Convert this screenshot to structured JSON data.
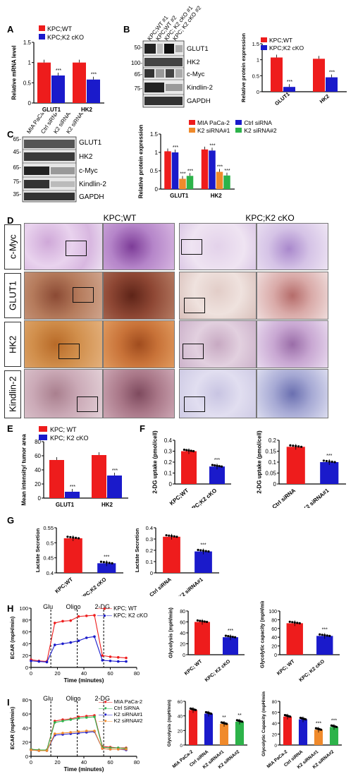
{
  "panels": {
    "A": "A",
    "B": "B",
    "C": "C",
    "D": "D",
    "E": "E",
    "F": "F",
    "G": "G",
    "H": "H",
    "I": "I"
  },
  "colors": {
    "red": "#ee1c1c",
    "blue": "#1a1acb",
    "green": "#2db34a",
    "orange": "#f08a2b",
    "wt": "#ee1c1c",
    "ko": "#1a1acb"
  },
  "panelA": {
    "legend": [
      "KPC;WT",
      "KPC;K2 cKO"
    ],
    "sig": [
      "***",
      "***"
    ]
  },
  "panelB": {
    "lanes": [
      "KPC;WT #1",
      "KPC;WT #2",
      "KPC; K2 cKO #1",
      "KPC; K2 cKO #2"
    ],
    "mw": [
      "50-",
      "100-",
      "65-",
      "75-"
    ],
    "proteins": [
      "GLUT1",
      "HK2",
      "c-Myc",
      "Kindlin-2",
      "GAPDH"
    ],
    "legend": [
      "KPC;WT",
      "KPC;K2 cKO"
    ]
  },
  "panelC": {
    "lanes": [
      "MIA PaCa-2",
      "Ctrl siRNA",
      "K2 siRNA#1",
      "K2 siRNA#2"
    ],
    "mw": [
      "65-",
      "45-",
      "65-",
      "75-",
      "35-"
    ],
    "proteins": [
      "GLUT1",
      "HK2",
      "c-Myc",
      "Kindlin-2",
      "GAPDH"
    ],
    "legend": [
      "MIA PaCa-2",
      "K2 siRNA#1",
      "Ctrl siRNA",
      "K2 siRNA#2"
    ]
  },
  "panelD": {
    "col_titles": [
      "KPC;WT",
      "KPC;K2 cKO"
    ],
    "rows": [
      "c-Myc",
      "GLUT1",
      "HK2",
      "Kindlin-2"
    ]
  },
  "panelE": {
    "legend": [
      "KPC; WT",
      "KPC; K2 cKO"
    ]
  },
  "panelF": {},
  "panelG": {},
  "panelH": {
    "legend": [
      "KPC; WT",
      "KPC; K2 cKO"
    ],
    "annot": [
      "Glu",
      "Oligo",
      "2-DG"
    ]
  },
  "panelI": {
    "legend": [
      "MIA PaCa-2",
      "Ctrl SiRNA",
      "K2 siRNA#1",
      "K2 siRNA#2"
    ],
    "annot": [
      "Glu",
      "Oligo",
      "2-DG"
    ]
  },
  "chart_data": [
    {
      "id": "A",
      "type": "bar",
      "ylabel": "Relative mRNA level",
      "categories": [
        "GLUT1",
        "HK2"
      ],
      "ylim": [
        0,
        1.5
      ],
      "yticks": [
        0.0,
        0.5,
        1.0,
        1.5
      ],
      "series": [
        {
          "name": "KPC;WT",
          "values": [
            1.0,
            1.0
          ]
        },
        {
          "name": "KPC;K2 cKO",
          "values": [
            0.68,
            0.58
          ]
        }
      ]
    },
    {
      "id": "B",
      "type": "bar",
      "ylabel": "Relative protein expression",
      "categories": [
        "GLUT1",
        "HK2"
      ],
      "ylim": [
        0,
        1.5
      ],
      "yticks": [
        0.0,
        0.5,
        1.0,
        1.5
      ],
      "series": [
        {
          "name": "KPC;WT",
          "values": [
            1.07,
            1.03
          ]
        },
        {
          "name": "KPC;K2 cKO",
          "values": [
            0.15,
            0.45
          ]
        }
      ],
      "sig": [
        "***",
        "***"
      ]
    },
    {
      "id": "C",
      "type": "bar",
      "ylabel": "Relative protein expression",
      "categories": [
        "GLUT1",
        "HK2"
      ],
      "ylim": [
        0,
        1.5
      ],
      "yticks": [
        0.0,
        0.5,
        1.0,
        1.5
      ],
      "series": [
        {
          "name": "MIA PaCa-2",
          "values": [
            1.03,
            1.08
          ]
        },
        {
          "name": "Ctrl siRNA",
          "values": [
            1.0,
            1.05
          ]
        },
        {
          "name": "K2 siRNA#1",
          "values": [
            0.28,
            0.47
          ]
        },
        {
          "name": "K2 siRNA#2",
          "values": [
            0.36,
            0.37
          ]
        }
      ],
      "sig": [
        "***",
        "***",
        "***",
        "***"
      ]
    },
    {
      "id": "E",
      "type": "bar",
      "ylabel": "Mean intensity/ tumor area",
      "categories": [
        "GLUT1",
        "HK2"
      ],
      "ylim": [
        0,
        80
      ],
      "yticks": [
        0,
        20,
        40,
        60,
        80
      ],
      "series": [
        {
          "name": "KPC; WT",
          "values": [
            54,
            61
          ]
        },
        {
          "name": "KPC; K2 cKO",
          "values": [
            9,
            32
          ]
        }
      ],
      "sig": [
        "***",
        "***"
      ]
    },
    {
      "id": "F1",
      "type": "bar",
      "ylabel": "2-DG uptake (pmol/cell)",
      "categories": [
        "KPC;WT",
        "KPC;K2 cKO"
      ],
      "ylim": [
        0,
        0.4
      ],
      "yticks": [
        0.0,
        0.1,
        0.2,
        0.3,
        0.4
      ],
      "values": [
        0.3,
        0.16
      ],
      "sig": "***"
    },
    {
      "id": "F2",
      "type": "bar",
      "ylabel": "2-DG uptake (pmol/cell)",
      "categories": [
        "Ctrl siRNA",
        "K2 siRNA#1"
      ],
      "ylim": [
        0,
        0.2
      ],
      "yticks": [
        0.0,
        0.05,
        0.1,
        0.15,
        0.2
      ],
      "values": [
        0.17,
        0.1
      ],
      "sig": "***"
    },
    {
      "id": "G1",
      "type": "bar",
      "ylabel": "Lactate Secretion",
      "categories": [
        "KPC;WT",
        "KPC;K2 cKO"
      ],
      "ylim": [
        0.4,
        0.55
      ],
      "yticks": [
        0.4,
        0.45,
        0.5,
        0.55
      ],
      "values": [
        0.515,
        0.432
      ],
      "sig": "***"
    },
    {
      "id": "G2",
      "type": "bar",
      "ylabel": "Lactate Secretion",
      "categories": [
        "Ctrl siRNA",
        "K2 siRNA#1"
      ],
      "ylim": [
        0,
        0.4
      ],
      "yticks": [
        0.0,
        0.1,
        0.2,
        0.3,
        0.4
      ],
      "values": [
        0.32,
        0.19
      ],
      "sig": "***"
    },
    {
      "id": "H1",
      "type": "line",
      "ylabel": "ECAR (mpH/min)",
      "xlabel": "Time (minutes)",
      "ylim": [
        0,
        100
      ],
      "yticks": [
        0,
        20,
        40,
        60,
        80,
        100
      ],
      "xlim": [
        0,
        80
      ],
      "xticks": [
        0,
        20,
        40,
        60,
        80
      ],
      "x": [
        0,
        6,
        12,
        18,
        24,
        30,
        36,
        42,
        48,
        54,
        60,
        66,
        72
      ],
      "series": [
        {
          "name": "KPC; WT",
          "values": [
            13,
            11,
            10,
            75,
            78,
            79,
            86,
            87,
            88,
            20,
            18,
            17,
            16
          ]
        },
        {
          "name": "KPC; K2 cKO",
          "values": [
            11,
            10,
            9,
            38,
            40,
            42,
            45,
            50,
            52,
            12,
            11,
            10,
            10
          ]
        }
      ]
    },
    {
      "id": "H2",
      "type": "bar",
      "ylabel": "Glycolysis (mpH/min)",
      "categories": [
        "KPC; WT",
        "KPC; K2 cKO"
      ],
      "ylim": [
        0,
        80
      ],
      "yticks": [
        0,
        20,
        40,
        60,
        80
      ],
      "values": [
        60,
        32
      ],
      "sig": "***"
    },
    {
      "id": "H3",
      "type": "bar",
      "ylabel": "Glycolytic capacity (mpH/min)",
      "categories": [
        "KPC; WT",
        "KPC; K2 cKO"
      ],
      "ylim": [
        0,
        100
      ],
      "yticks": [
        0,
        20,
        40,
        60,
        80,
        100
      ],
      "values": [
        72,
        43
      ],
      "sig": "***"
    },
    {
      "id": "I1",
      "type": "line",
      "ylabel": "ECAR (mpH/min)",
      "xlabel": "Time (minutes)",
      "ylim": [
        0,
        80
      ],
      "yticks": [
        0,
        20,
        40,
        60,
        80
      ],
      "xlim": [
        0,
        80
      ],
      "xticks": [
        0,
        20,
        40,
        60,
        80
      ],
      "x": [
        0,
        6,
        12,
        18,
        24,
        30,
        36,
        42,
        48,
        54,
        60,
        66,
        72
      ],
      "series": [
        {
          "name": "MIA PaCa-2",
          "values": [
            10,
            9,
            9,
            50,
            52,
            53,
            56,
            57,
            58,
            14,
            13,
            12,
            12
          ]
        },
        {
          "name": "Ctrl SiRNA",
          "values": [
            10,
            9,
            9,
            48,
            50,
            52,
            54,
            55,
            56,
            13,
            12,
            12,
            11
          ]
        },
        {
          "name": "K2 siRNA#1",
          "values": [
            9,
            8,
            8,
            30,
            31,
            32,
            33,
            34,
            35,
            11,
            10,
            10,
            9
          ]
        },
        {
          "name": "K2 siRNA#2",
          "values": [
            9,
            8,
            8,
            32,
            33,
            34,
            35,
            36,
            36,
            11,
            10,
            10,
            10
          ]
        }
      ]
    },
    {
      "id": "I2",
      "type": "bar",
      "ylabel": "Glycolysis (mpH/min)",
      "categories": [
        "MIA PaCa-2",
        "Ctrl siRNA",
        "K2 siRNA#1",
        "K2 siRNA#2"
      ],
      "ylim": [
        0,
        60
      ],
      "yticks": [
        0,
        20,
        40,
        60
      ],
      "values": [
        48,
        43,
        29,
        32
      ],
      "sig": [
        "",
        "",
        "**",
        "**"
      ]
    },
    {
      "id": "I3",
      "type": "bar",
      "ylabel": "Glycolytic Capacity (mpH/min)",
      "categories": [
        "MIA PaCa-2",
        "Ctrl siRNA",
        "K2 siRNA#1",
        "K2 siRNA#2"
      ],
      "ylim": [
        0,
        80
      ],
      "yticks": [
        0,
        20,
        40,
        60,
        80
      ],
      "values": [
        52,
        47,
        28,
        33
      ],
      "sig": [
        "",
        "",
        "***",
        "***"
      ]
    }
  ]
}
